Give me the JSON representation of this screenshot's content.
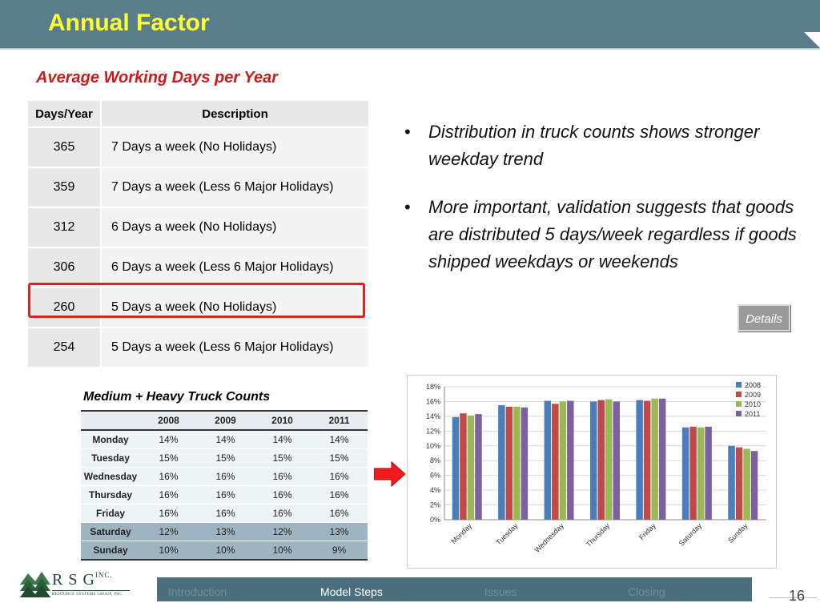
{
  "slide": {
    "title": "Annual Factor",
    "subtitle": "Average Working Days per Year",
    "page_number": "16"
  },
  "days_table": {
    "headers": [
      "Days/Year",
      "Description"
    ],
    "rows": [
      {
        "days": "365",
        "desc": "7 Days a week (No Holidays)"
      },
      {
        "days": "359",
        "desc": "7 Days a week (Less 6 Major Holidays)"
      },
      {
        "days": "312",
        "desc": "6 Days a week (No Holidays)"
      },
      {
        "days": "306",
        "desc": "6 Days a week (Less 6 Major Holidays)"
      },
      {
        "days": "260",
        "desc": "5 Days a week (No Holidays)"
      },
      {
        "days": "254",
        "desc": "5 Days a week (Less 6 Major Holidays)"
      }
    ]
  },
  "bullets": [
    "Distribution in truck counts shows stronger weekday trend",
    "More important, validation  suggests that goods are distributed 5 days/week regardless if goods shipped weekdays or weekends"
  ],
  "bullet_glyph": "•",
  "details_button": "Details",
  "counts_table": {
    "title": "Medium + Heavy Truck Counts",
    "headers": [
      "",
      "2008",
      "2009",
      "2010",
      "2011"
    ],
    "rows": [
      {
        "day": "Monday",
        "values": [
          "14%",
          "14%",
          "14%",
          "14%"
        ]
      },
      {
        "day": "Tuesday",
        "values": [
          "15%",
          "15%",
          "15%",
          "15%"
        ]
      },
      {
        "day": "Wednesday",
        "values": [
          "16%",
          "16%",
          "16%",
          "16%"
        ]
      },
      {
        "day": "Thursday",
        "values": [
          "16%",
          "16%",
          "16%",
          "16%"
        ]
      },
      {
        "day": "Friday",
        "values": [
          "16%",
          "16%",
          "16%",
          "16%"
        ]
      },
      {
        "day": "Saturday",
        "values": [
          "12%",
          "13%",
          "12%",
          "13%"
        ]
      },
      {
        "day": "Sunday",
        "values": [
          "10%",
          "10%",
          "10%",
          "9%"
        ]
      }
    ]
  },
  "chart_data": {
    "type": "bar",
    "categories": [
      "Monday",
      "Tuesday",
      "Wednesday",
      "Thursday",
      "Friday",
      "Saturday",
      "Sunday"
    ],
    "series": [
      {
        "name": "2008",
        "color": "#4a7ebb",
        "values": [
          13.9,
          15.5,
          16.1,
          16.0,
          16.2,
          12.5,
          10.0
        ]
      },
      {
        "name": "2009",
        "color": "#be4b48",
        "values": [
          14.4,
          15.3,
          15.7,
          16.2,
          16.1,
          12.6,
          9.8
        ]
      },
      {
        "name": "2010",
        "color": "#98b954",
        "values": [
          14.1,
          15.3,
          16.0,
          16.3,
          16.4,
          12.5,
          9.6
        ]
      },
      {
        "name": "2011",
        "color": "#7d60a0",
        "values": [
          14.3,
          15.2,
          16.1,
          16.0,
          16.4,
          12.6,
          9.3
        ]
      }
    ],
    "ylim": [
      0,
      18
    ],
    "yticks": [
      "0%",
      "2%",
      "4%",
      "6%",
      "8%",
      "10%",
      "12%",
      "14%",
      "16%",
      "18%"
    ],
    "title": "",
    "xlabel": "",
    "ylabel": "",
    "grid": true,
    "legend": "top-right"
  },
  "logo": {
    "letters": "R S G",
    "suffix": "INC.",
    "subtitle": "RESOURCE SYSTEMS GROUP, INC."
  },
  "nav": {
    "items": [
      "Introduction",
      "Model Steps",
      "Issues",
      "Closing"
    ],
    "active": "Model Steps"
  },
  "colors": {
    "header": "#5a7d8c",
    "title": "#ffff33",
    "subtitle": "#cc1a1a",
    "highlight": "#e61e1e",
    "nav": "#4b6e7d"
  }
}
